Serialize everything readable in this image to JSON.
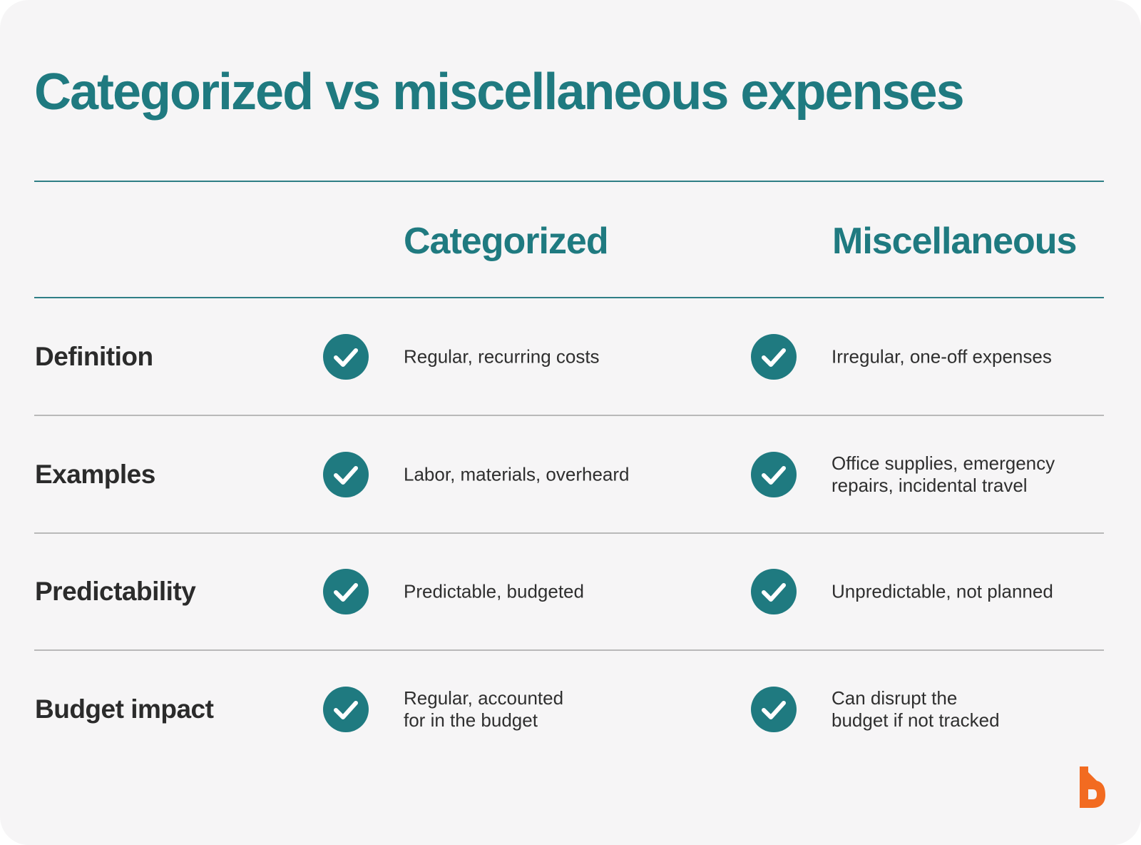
{
  "title": "Categorized vs miscellaneous expenses",
  "columns": [
    "Categorized",
    "Miscellaneous"
  ],
  "rows": [
    {
      "label": "Definition",
      "cells": [
        [
          "Regular, recurring costs"
        ],
        [
          "Irregular, one-off expenses"
        ]
      ]
    },
    {
      "label": "Examples",
      "cells": [
        [
          "Labor, materials, overheard"
        ],
        [
          "Office supplies, emergency",
          "repairs, incidental travel"
        ]
      ]
    },
    {
      "label": "Predictability",
      "cells": [
        [
          "Predictable, budgeted"
        ],
        [
          "Unpredictable, not planned"
        ]
      ]
    },
    {
      "label": "Budget impact",
      "cells": [
        [
          "Regular, accounted",
          "for in the budget"
        ],
        [
          "Can disrupt the",
          "budget if not tracked"
        ]
      ]
    }
  ]
}
